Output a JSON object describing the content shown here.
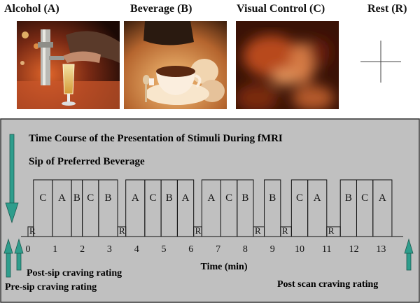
{
  "conditions": [
    {
      "label": "Alcohol (A)",
      "icon": "bar-beer-tap-photo"
    },
    {
      "label": "Beverage (B)",
      "icon": "teacup-photo"
    },
    {
      "label": "Visual Control (C)",
      "icon": "blurred-image-photo"
    },
    {
      "label": "Rest (R)",
      "icon": "fixation-cross-icon"
    }
  ],
  "panel": {
    "title": "Time Course of the Presentation of Stimuli During fMRI",
    "sip_label": "Sip of Preferred Beverage",
    "axis_label": "Time (min)",
    "pre_sip_label": "Pre-sip craving rating",
    "post_sip_label": "Post-sip craving rating",
    "post_scan_label": "Post scan craving rating",
    "colors": {
      "panel_bg": "#c0c0c0",
      "arrow": "#2e9d8c",
      "line": "#111111"
    }
  },
  "chart_data": {
    "type": "timeline",
    "xlabel": "Time (min)",
    "x_ticks": [
      0,
      1,
      2,
      3,
      4,
      5,
      6,
      7,
      8,
      9,
      10,
      11,
      12,
      13
    ],
    "x_range": [
      0,
      13.7
    ],
    "blocks": [
      {
        "label": "R",
        "start": 0.0,
        "end": 0.2
      },
      {
        "label": "C",
        "start": 0.2,
        "end": 0.9
      },
      {
        "label": "A",
        "start": 0.9,
        "end": 1.6
      },
      {
        "label": "B",
        "start": 1.6,
        "end": 2.0
      },
      {
        "label": "C",
        "start": 2.0,
        "end": 2.6
      },
      {
        "label": "B",
        "start": 2.6,
        "end": 3.3
      },
      {
        "label": "R",
        "start": 3.3,
        "end": 3.6
      },
      {
        "label": "A",
        "start": 3.6,
        "end": 4.3
      },
      {
        "label": "C",
        "start": 4.3,
        "end": 4.9
      },
      {
        "label": "B",
        "start": 4.9,
        "end": 5.5
      },
      {
        "label": "A",
        "start": 5.5,
        "end": 6.1
      },
      {
        "label": "R",
        "start": 6.1,
        "end": 6.4
      },
      {
        "label": "A",
        "start": 6.4,
        "end": 7.1
      },
      {
        "label": "C",
        "start": 7.1,
        "end": 7.7
      },
      {
        "label": "B",
        "start": 7.7,
        "end": 8.3
      },
      {
        "label": "R",
        "start": 8.3,
        "end": 8.7
      },
      {
        "label": "B",
        "start": 8.7,
        "end": 9.3
      },
      {
        "label": "R",
        "start": 9.3,
        "end": 9.7
      },
      {
        "label": "C",
        "start": 9.7,
        "end": 10.3
      },
      {
        "label": "A",
        "start": 10.3,
        "end": 11.0
      },
      {
        "label": "R",
        "start": 11.0,
        "end": 11.5
      },
      {
        "label": "B",
        "start": 11.5,
        "end": 12.1
      },
      {
        "label": "C",
        "start": 12.1,
        "end": 12.7
      },
      {
        "label": "A",
        "start": 12.7,
        "end": 13.4
      }
    ]
  }
}
